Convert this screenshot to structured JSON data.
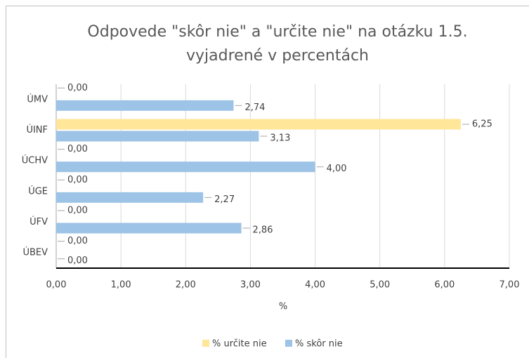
{
  "chart_data": {
    "type": "hbar",
    "title_lines": [
      "Odpovede \"skôr nie\" a \"určite nie\" na otázku 1.5.",
      "vyjadrené v percentách"
    ],
    "xlabel": "%",
    "categories": [
      "ÚMV",
      "ÚINF",
      "ÚCHV",
      "ÚGE",
      "ÚFV",
      "ÚBEV"
    ],
    "series": [
      {
        "name": "% určite nie",
        "color": "#ffe699",
        "values": [
          0,
          6.25,
          0,
          0,
          0,
          0
        ],
        "value_labels": [
          "0,00",
          "6,25",
          "0,00",
          "0,00",
          "0,00",
          "0,00"
        ]
      },
      {
        "name": "% skôr nie",
        "color": "#9dc3e6",
        "values": [
          2.74,
          3.13,
          4.0,
          2.27,
          2.86,
          0
        ],
        "value_labels": [
          "2,74",
          "3,13",
          "4,00",
          "2,27",
          "2,86",
          "0,00"
        ]
      }
    ],
    "xlim": [
      0,
      7
    ],
    "xticks": [
      {
        "value": 0,
        "label": "0,00"
      },
      {
        "value": 1,
        "label": "1,00"
      },
      {
        "value": 2,
        "label": "2,00"
      },
      {
        "value": 3,
        "label": "3,00"
      },
      {
        "value": 4,
        "label": "4,00"
      },
      {
        "value": 5,
        "label": "5,00"
      },
      {
        "value": 6,
        "label": "6,00"
      },
      {
        "value": 7,
        "label": "7,00"
      }
    ],
    "grid": true,
    "legend": "bottom"
  }
}
